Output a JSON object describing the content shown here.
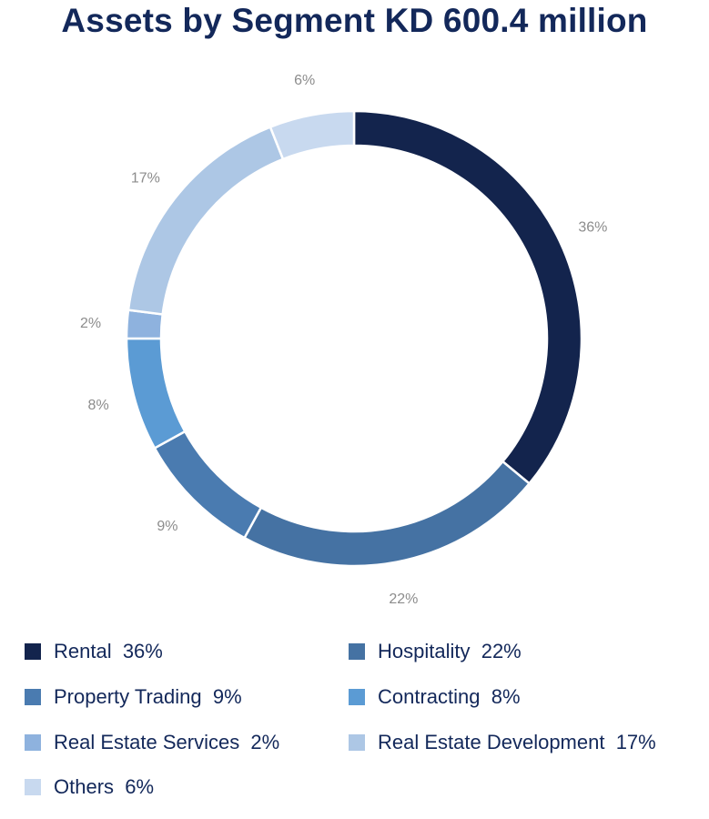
{
  "chart_data": {
    "type": "pie",
    "title": "Assets by Segment KD 600.4 million",
    "order": [
      "Rental",
      "Hospitality",
      "Property Trading",
      "Contracting",
      "Real Estate Services",
      "Real Estate Development",
      "Others"
    ],
    "values": [
      36,
      22,
      9,
      8,
      2,
      17,
      6
    ],
    "value_labels": [
      "36%",
      "22%",
      "9%",
      "8%",
      "2%",
      "17%",
      "6%"
    ],
    "colors": [
      "#13244d",
      "#4572a3",
      "#4a7bb0",
      "#5b9bd4",
      "#8eb2de",
      "#adc7e5",
      "#c8d9ef"
    ]
  },
  "legend": [
    {
      "label": "Rental",
      "value": "36%",
      "color": "#13244d"
    },
    {
      "label": "Hospitality",
      "value": "22%",
      "color": "#4572a3"
    },
    {
      "label": "Property Trading",
      "value": "9%",
      "color": "#4a7bb0"
    },
    {
      "label": "Contracting",
      "value": "8%",
      "color": "#5b9bd4"
    },
    {
      "label": "Real Estate Services",
      "value": "2%",
      "color": "#8eb2de"
    },
    {
      "label": "Real Estate Development",
      "value": "17%",
      "color": "#adc7e5"
    },
    {
      "label": "Others",
      "value": "6%",
      "color": "#c8d9ef"
    }
  ],
  "legend_text": [
    "Rental  36%",
    "Hospitality  22%",
    "Property Trading  9%",
    "Contracting  8%",
    "Real Estate Services  2%",
    "Real Estate Development  17%",
    "Others  6%"
  ]
}
